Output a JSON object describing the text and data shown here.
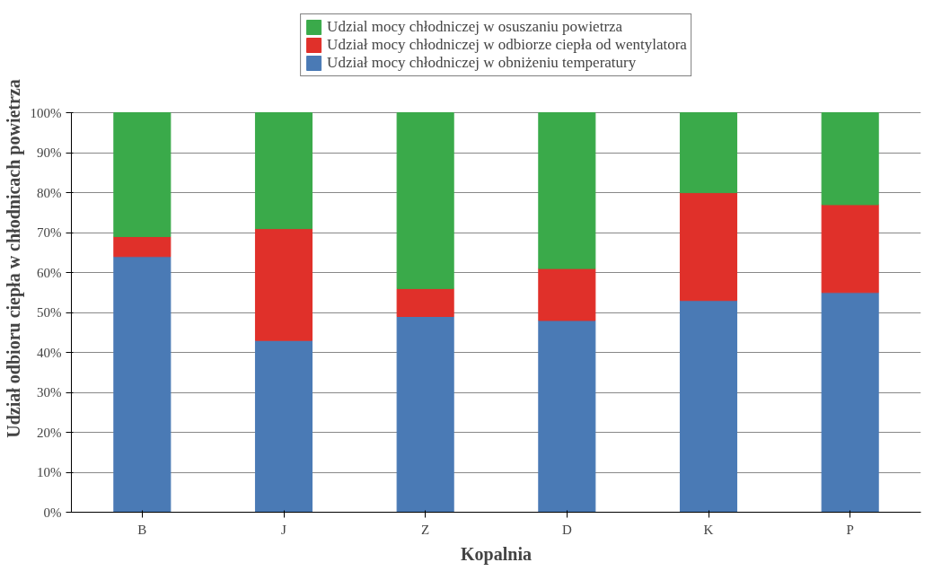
{
  "chart_data": {
    "type": "bar",
    "stacked": true,
    "xlabel": "Kopalnia",
    "ylabel": "Udział odbioru ciepła w chłodnicach powietrza",
    "categories": [
      "B",
      "J",
      "Z",
      "D",
      "K",
      "P"
    ],
    "series": [
      {
        "name": "Udział mocy chłodniczej w obniżeniu temperatury",
        "color": "#4a7ab5",
        "values": [
          64,
          43,
          49,
          48,
          53,
          55
        ]
      },
      {
        "name": "Udział mocy chłodniczej w odbiorze ciepła od wentylatora",
        "color": "#e0302a",
        "values": [
          5,
          28,
          7,
          13,
          27,
          22
        ]
      },
      {
        "name": "Udzial mocy chłodniczej w osuszaniu powietrza",
        "color": "#3aaa4a",
        "values": [
          31,
          29,
          44,
          39,
          20,
          23
        ]
      }
    ],
    "ylim": [
      0,
      100
    ],
    "yticks": [
      {
        "value": 0,
        "label": "0%"
      },
      {
        "value": 10,
        "label": "10%"
      },
      {
        "value": 20,
        "label": "20%"
      },
      {
        "value": 30,
        "label": "30%"
      },
      {
        "value": 40,
        "label": "40%"
      },
      {
        "value": 50,
        "label": "50%"
      },
      {
        "value": 60,
        "label": "60%"
      },
      {
        "value": 70,
        "label": "70%"
      },
      {
        "value": 80,
        "label": "80%"
      },
      {
        "value": 90,
        "label": "90%"
      },
      {
        "value": 100,
        "label": "100%"
      }
    ],
    "grid": "y",
    "legend": "top"
  }
}
